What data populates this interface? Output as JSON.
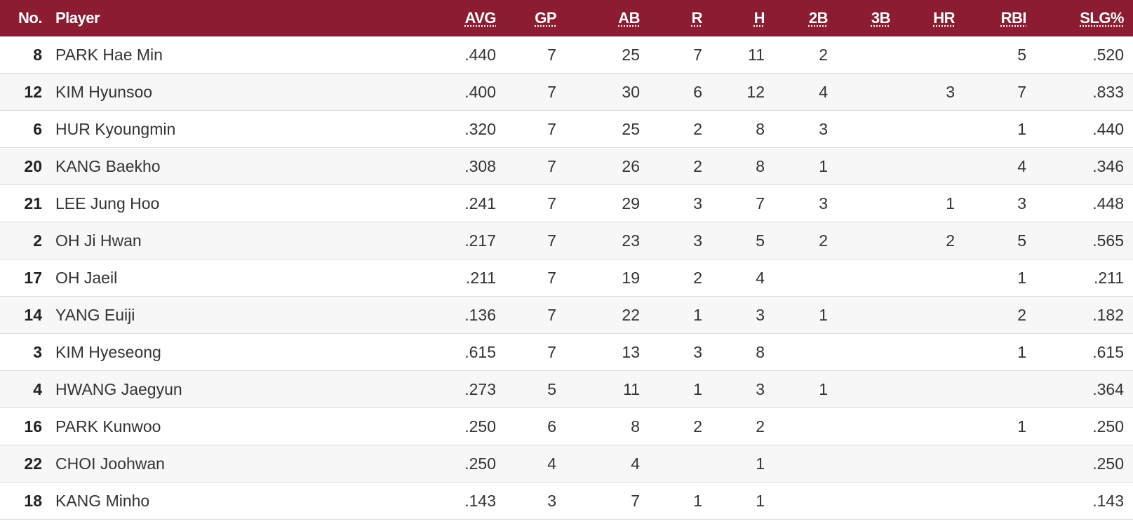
{
  "table": {
    "header": [
      "No.",
      "Player",
      "AVG",
      "GP",
      "AB",
      "R",
      "H",
      "2B",
      "3B",
      "HR",
      "RBI",
      "SLG%"
    ],
    "rows": [
      [
        8,
        "PARK Hae Min",
        ".440",
        7,
        25,
        7,
        11,
        2,
        null,
        null,
        5,
        ".520"
      ],
      [
        12,
        "KIM Hyunsoo",
        ".400",
        7,
        30,
        6,
        12,
        4,
        null,
        3,
        7,
        ".833"
      ],
      [
        6,
        "HUR Kyoungmin",
        ".320",
        7,
        25,
        2,
        8,
        3,
        null,
        null,
        1,
        ".440"
      ],
      [
        20,
        "KANG Baekho",
        ".308",
        7,
        26,
        2,
        8,
        1,
        null,
        null,
        4,
        ".346"
      ],
      [
        21,
        "LEE Jung Hoo",
        ".241",
        7,
        29,
        3,
        7,
        3,
        null,
        1,
        3,
        ".448"
      ],
      [
        2,
        "OH Ji Hwan",
        ".217",
        7,
        23,
        3,
        5,
        2,
        null,
        2,
        5,
        ".565"
      ],
      [
        17,
        "OH Jaeil",
        ".211",
        7,
        19,
        2,
        4,
        null,
        null,
        null,
        1,
        ".211"
      ],
      [
        14,
        "YANG Euiji",
        ".136",
        7,
        22,
        1,
        3,
        1,
        null,
        null,
        2,
        ".182"
      ],
      [
        3,
        "KIM Hyeseong",
        ".615",
        7,
        13,
        3,
        8,
        null,
        null,
        null,
        1,
        ".615"
      ],
      [
        4,
        "HWANG Jaegyun",
        ".273",
        5,
        11,
        1,
        3,
        1,
        null,
        null,
        null,
        ".364"
      ],
      [
        16,
        "PARK Kunwoo",
        ".250",
        6,
        8,
        2,
        2,
        null,
        null,
        null,
        1,
        ".250"
      ],
      [
        22,
        "CHOI Joohwan",
        ".250",
        4,
        4,
        null,
        1,
        null,
        null,
        null,
        null,
        ".250"
      ],
      [
        18,
        "KANG Minho",
        ".143",
        3,
        7,
        1,
        1,
        null,
        null,
        null,
        null,
        ".143"
      ]
    ]
  }
}
